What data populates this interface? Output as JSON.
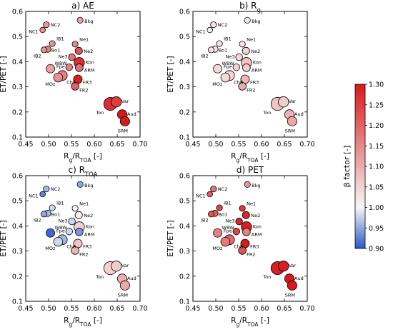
{
  "chart_data": {
    "type": "scatter",
    "xlabel": "R_g/R_TOA [-]",
    "ylabel": "ET/PET [-]",
    "xlim": [
      0.45,
      0.7
    ],
    "ylim": [
      0.1,
      0.6
    ],
    "xticks": [
      "0.45",
      "0.50",
      "0.55",
      "0.60",
      "0.65",
      "0.70"
    ],
    "yticks": [
      "0.1",
      "0.2",
      "0.3",
      "0.4",
      "0.5",
      "0.6"
    ],
    "colorbar": {
      "label": "β factor [-]",
      "min": 0.9,
      "max": 1.3,
      "ticks": [
        "0.90",
        "0.95",
        "1.00",
        "1.05",
        "1.10",
        "1.15",
        "1.20",
        "1.25",
        "1.30"
      ],
      "cmap_low": "#2b57c9",
      "cmap_mid": "#f7f7f7",
      "cmap_high": "#d7191c"
    },
    "sites": [
      {
        "name": "Bkg",
        "x": 0.569,
        "y": 0.565,
        "s": 0.6
      },
      {
        "name": "NC2",
        "x": 0.495,
        "y": 0.547,
        "s": 0.6
      },
      {
        "name": "NC1",
        "x": 0.487,
        "y": 0.526,
        "s": 0.5
      },
      {
        "name": "IB1",
        "x": 0.508,
        "y": 0.472,
        "s": 0.6
      },
      {
        "name": "Ne1",
        "x": 0.558,
        "y": 0.47,
        "s": 0.6
      },
      {
        "name": "Bo1",
        "x": 0.498,
        "y": 0.45,
        "s": 0.7
      },
      {
        "name": "IB2",
        "x": 0.49,
        "y": 0.447,
        "s": 0.6
      },
      {
        "name": "Ne2",
        "x": 0.566,
        "y": 0.443,
        "s": 0.9
      },
      {
        "name": "Ne3",
        "x": 0.551,
        "y": 0.418,
        "s": 0.8
      },
      {
        "name": "Kon",
        "x": 0.567,
        "y": 0.396,
        "s": 1.6
      },
      {
        "name": "WBW",
        "x": 0.504,
        "y": 0.372,
        "s": 1.2
      },
      {
        "name": "Fpe",
        "x": 0.545,
        "y": 0.378,
        "s": 0.8
      },
      {
        "name": "ARM",
        "x": 0.567,
        "y": 0.376,
        "s": 1.0
      },
      {
        "name": "ChR",
        "x": 0.53,
        "y": 0.345,
        "s": 1.5
      },
      {
        "name": "MOz",
        "x": 0.521,
        "y": 0.337,
        "s": 1.3
      },
      {
        "name": "FR3",
        "x": 0.564,
        "y": 0.33,
        "s": 1.2
      },
      {
        "name": "FR2",
        "x": 0.558,
        "y": 0.302,
        "s": 1.0
      },
      {
        "name": "Var",
        "x": 0.648,
        "y": 0.24,
        "s": 1.6
      },
      {
        "name": "Ton",
        "x": 0.635,
        "y": 0.232,
        "s": 2.2
      },
      {
        "name": "Aud",
        "x": 0.661,
        "y": 0.19,
        "s": 1.4
      },
      {
        "name": "SRM",
        "x": 0.667,
        "y": 0.163,
        "s": 1.4
      }
    ],
    "panels": [
      {
        "title": "a) AE",
        "beta": [
          1.12,
          1.13,
          1.14,
          1.14,
          1.15,
          1.16,
          1.14,
          1.22,
          1.18,
          1.27,
          1.12,
          1.16,
          1.18,
          1.16,
          1.14,
          1.29,
          1.2,
          1.25,
          1.27,
          1.3,
          1.3
        ]
      },
      {
        "title": "b) R",
        "sub": "g",
        "beta": [
          1.02,
          1.03,
          1.01,
          1.03,
          1.03,
          1.02,
          1.03,
          1.05,
          1.04,
          1.07,
          1.04,
          1.05,
          1.06,
          1.05,
          1.04,
          1.09,
          1.1,
          1.06,
          1.07,
          1.09,
          1.11
        ]
      },
      {
        "title": "c) R",
        "sub": "TOA",
        "beta": [
          0.95,
          0.96,
          0.93,
          0.98,
          1.0,
          0.96,
          0.95,
          1.01,
          0.98,
          1.05,
          0.91,
          0.98,
          0.94,
          0.96,
          0.98,
          1.07,
          1.09,
          1.06,
          1.05,
          1.1,
          1.11
        ]
      },
      {
        "title": "d) PET",
        "beta": [
          1.13,
          1.18,
          1.21,
          1.24,
          1.26,
          1.2,
          1.22,
          1.28,
          1.28,
          1.29,
          1.16,
          1.24,
          1.16,
          1.19,
          1.17,
          1.3,
          1.22,
          1.29,
          1.29,
          1.3,
          1.3
        ]
      }
    ]
  }
}
